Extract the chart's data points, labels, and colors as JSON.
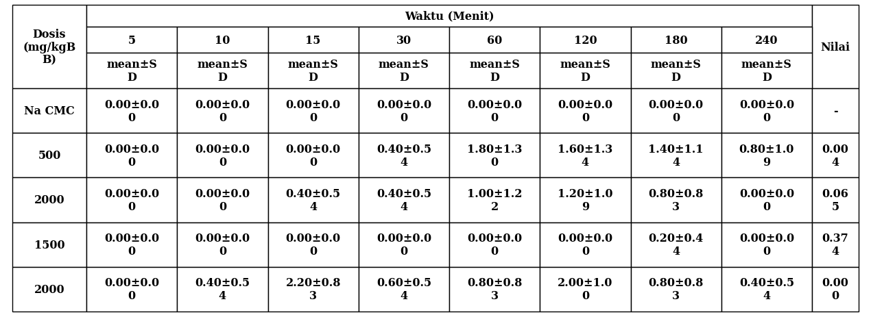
{
  "title": "Waktu (Menit)",
  "col_header_row1": [
    "5",
    "10",
    "15",
    "30",
    "60",
    "120",
    "180",
    "240"
  ],
  "row_header": [
    "Dosis\n(mg/kgB\nB)",
    "Na CMC",
    "500",
    "2000",
    "1500",
    "2000"
  ],
  "nilai_header": "Nilai",
  "rows": [
    [
      "0.00±0.0\n0",
      "0.00±0.0\n0",
      "0.00±0.0\n0",
      "0.00±0.0\n0",
      "0.00±0.0\n0",
      "0.00±0.0\n0",
      "0.00±0.0\n0",
      "0.00±0.0\n0"
    ],
    [
      "0.00±0.0\n0",
      "0.00±0.0\n0",
      "0.00±0.0\n0",
      "0.40±0.5\n4",
      "1.80±1.3\n0",
      "1.60±1.3\n4",
      "1.40±1.1\n4",
      "0.80±1.0\n9"
    ],
    [
      "0.00±0.0\n0",
      "0.00±0.0\n0",
      "0.40±0.5\n4",
      "0.40±0.5\n4",
      "1.00±1.2\n2",
      "1.20±1.0\n9",
      "0.80±0.8\n3",
      "0.00±0.0\n0"
    ],
    [
      "0.00±0.0\n0",
      "0.00±0.0\n0",
      "0.00±0.0\n0",
      "0.00±0.0\n0",
      "0.00±0.0\n0",
      "0.00±0.0\n0",
      "0.20±0.4\n4",
      "0.00±0.0\n0"
    ],
    [
      "0.00±0.0\n0",
      "0.40±0.5\n4",
      "2.20±0.8\n3",
      "0.60±0.5\n4",
      "0.80±0.8\n3",
      "2.00±1.0\n0",
      "0.80±0.8\n3",
      "0.40±0.5\n4"
    ]
  ],
  "nilai_rows": [
    "-",
    "0.00\n4",
    "0.06\n5",
    "0.37\n4",
    "0.00\n0"
  ],
  "bg_color": "#ffffff",
  "text_color": "#000000",
  "font_size": 11.5,
  "header_font_size": 11.5,
  "lw": 1.0
}
